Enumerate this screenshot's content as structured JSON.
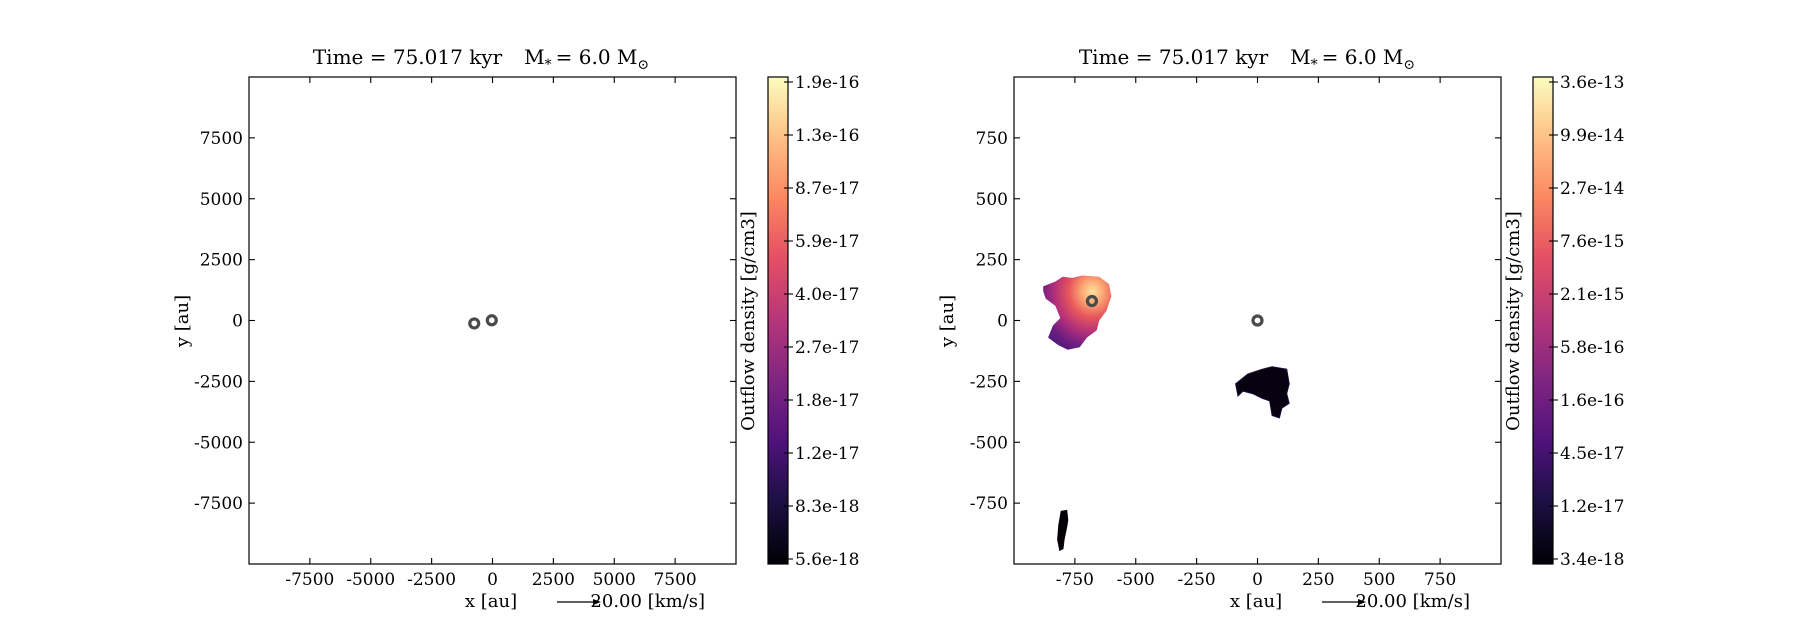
{
  "chart_data": [
    {
      "type": "heatmap",
      "title": "Time = 75.017 kyr    M$_*$ = 6.0 M$_\\odot$",
      "title_parts": {
        "time_label": "Time = 75.017 kyr",
        "mass_label": "M",
        "mass_subscript": "*",
        "mass_value": "= 6.0 M",
        "mass_unit_symbol": "⊙"
      },
      "xlabel": "x [au]",
      "ylabel": "y [au]",
      "xlim": [
        -10000,
        10000
      ],
      "ylim": [
        -10000,
        10000
      ],
      "xticks": [
        -7500,
        -5000,
        -2500,
        0,
        2500,
        5000,
        7500
      ],
      "yticks": [
        7500,
        5000,
        2500,
        0,
        -2500,
        -5000,
        -7500
      ],
      "grid": false,
      "stars": [
        {
          "x": -750,
          "y": -120
        },
        {
          "x": -30,
          "y": 10
        }
      ],
      "outflow_regions": [],
      "velocity_key": {
        "value_label": "20.00 [km/s]"
      },
      "colorbar": {
        "label": "Outflow density [g/cm3]",
        "colormap": "magma",
        "scale": "log",
        "tick_labels": [
          "1.9e-16",
          "1.3e-16",
          "8.7e-17",
          "5.9e-17",
          "4.0e-17",
          "2.7e-17",
          "1.8e-17",
          "1.2e-17",
          "8.3e-18",
          "5.6e-18"
        ]
      }
    },
    {
      "type": "heatmap",
      "title": "Time = 75.017 kyr    M$_*$ = 6.0 M$_\\odot$",
      "title_parts": {
        "time_label": "Time = 75.017 kyr",
        "mass_label": "M",
        "mass_subscript": "*",
        "mass_value": "= 6.0 M",
        "mass_unit_symbol": "⊙"
      },
      "xlabel": "x [au]",
      "ylabel": "y [au]",
      "xlim": [
        -1000,
        1000
      ],
      "ylim": [
        -1000,
        1000
      ],
      "xticks": [
        -750,
        -500,
        -250,
        0,
        250,
        500,
        750
      ],
      "yticks": [
        750,
        500,
        250,
        0,
        -250,
        -500,
        -750
      ],
      "grid": false,
      "stars": [
        {
          "x": -680,
          "y": 80
        },
        {
          "x": 0,
          "y": 0
        }
      ],
      "outflow_regions": [
        {
          "name": "bright-lobe",
          "points": [
            [
              -880,
              140
            ],
            [
              -830,
              160
            ],
            [
              -800,
              180
            ],
            [
              -760,
              175
            ],
            [
              -720,
              185
            ],
            [
              -650,
              180
            ],
            [
              -610,
              150
            ],
            [
              -600,
              100
            ],
            [
              -620,
              40
            ],
            [
              -650,
              0
            ],
            [
              -660,
              -40
            ],
            [
              -700,
              -70
            ],
            [
              -730,
              -110
            ],
            [
              -780,
              -120
            ],
            [
              -820,
              -100
            ],
            [
              -860,
              -70
            ],
            [
              -840,
              -20
            ],
            [
              -810,
              10
            ],
            [
              -830,
              60
            ],
            [
              -870,
              90
            ],
            [
              -880,
              120
            ]
          ]
        },
        {
          "name": "dark-patch",
          "points": [
            [
              -40,
              -220
            ],
            [
              -10,
              -210
            ],
            [
              20,
              -200
            ],
            [
              60,
              -190
            ],
            [
              90,
              -195
            ],
            [
              120,
              -200
            ],
            [
              130,
              -260
            ],
            [
              120,
              -300
            ],
            [
              130,
              -340
            ],
            [
              100,
              -360
            ],
            [
              90,
              -400
            ],
            [
              60,
              -390
            ],
            [
              50,
              -330
            ],
            [
              20,
              -320
            ],
            [
              -20,
              -300
            ],
            [
              -60,
              -290
            ],
            [
              -80,
              -310
            ],
            [
              -90,
              -260
            ]
          ]
        },
        {
          "name": "dark-strip",
          "points": [
            [
              -810,
              -780
            ],
            [
              -780,
              -775
            ],
            [
              -775,
              -820
            ],
            [
              -780,
              -850
            ],
            [
              -790,
              -900
            ],
            [
              -795,
              -940
            ],
            [
              -815,
              -950
            ],
            [
              -825,
              -900
            ],
            [
              -820,
              -840
            ]
          ]
        }
      ],
      "velocity_key": {
        "value_label": "20.00 [km/s]"
      },
      "colorbar": {
        "label": "Outflow density [g/cm3]",
        "colormap": "magma",
        "scale": "log",
        "tick_labels": [
          "3.6e-13",
          "9.9e-14",
          "2.7e-14",
          "7.6e-15",
          "2.1e-15",
          "5.8e-16",
          "1.6e-16",
          "4.5e-17",
          "1.2e-17",
          "3.4e-18"
        ]
      }
    }
  ]
}
